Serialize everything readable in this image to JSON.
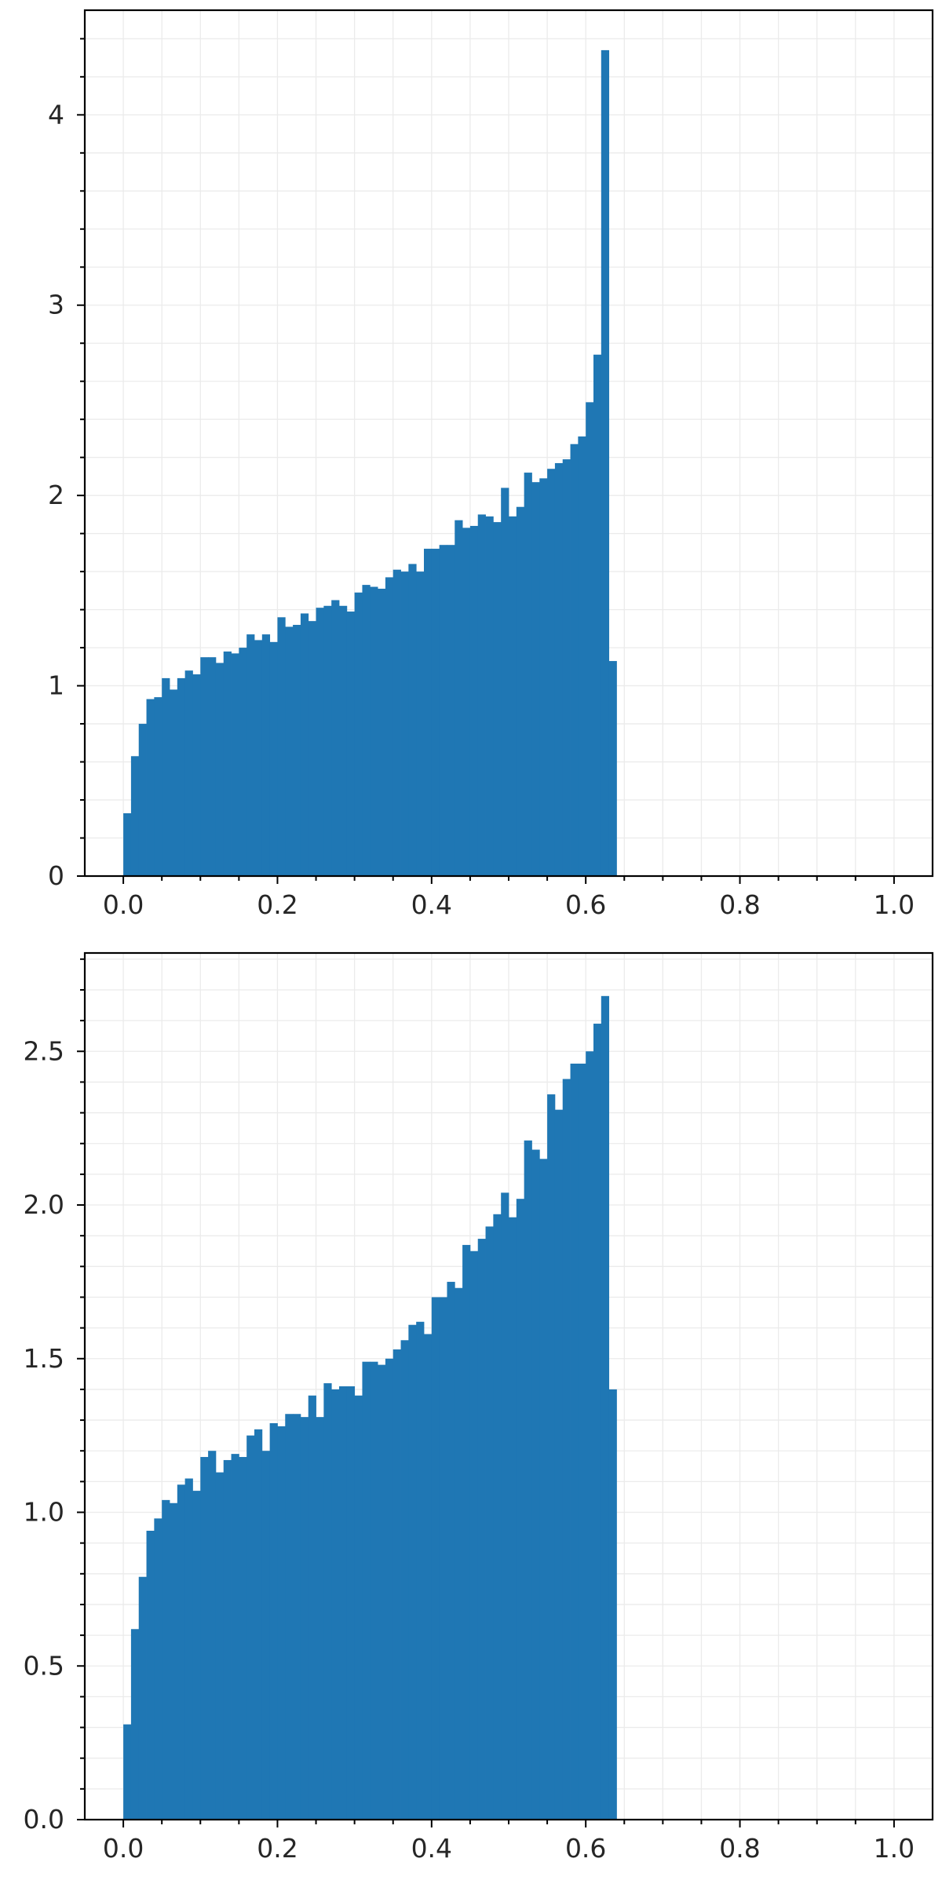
{
  "colors": {
    "bar": "#1f77b4",
    "grid": "#ebebeb",
    "axis": "#000000",
    "text": "#262626",
    "background": "#ffffff"
  },
  "chart_data": [
    {
      "type": "bar",
      "title": "",
      "xlabel": "",
      "ylabel": "",
      "grid": true,
      "bin_width": 0.01,
      "xlim": [
        -0.05,
        1.05
      ],
      "ylim": [
        0,
        4.55
      ],
      "x_ticks": [
        0.0,
        0.2,
        0.4,
        0.6,
        0.8,
        1.0
      ],
      "x_tick_labels": [
        "0.0",
        "0.2",
        "0.4",
        "0.6",
        "0.8",
        "1.0"
      ],
      "y_ticks": [
        0,
        1,
        2,
        3,
        4
      ],
      "y_tick_labels": [
        "0",
        "1",
        "2",
        "3",
        "4"
      ],
      "bin_starts": [
        0.0,
        0.01,
        0.02,
        0.03,
        0.04,
        0.05,
        0.06,
        0.07,
        0.08,
        0.09,
        0.1,
        0.11,
        0.12,
        0.13,
        0.14,
        0.15,
        0.16,
        0.17,
        0.18,
        0.19,
        0.2,
        0.21,
        0.22,
        0.23,
        0.24,
        0.25,
        0.26,
        0.27,
        0.28,
        0.29,
        0.3,
        0.31,
        0.32,
        0.33,
        0.34,
        0.35,
        0.36,
        0.37,
        0.38,
        0.39,
        0.4,
        0.41,
        0.42,
        0.43,
        0.44,
        0.45,
        0.46,
        0.47,
        0.48,
        0.49,
        0.5,
        0.51,
        0.52,
        0.53,
        0.54,
        0.55,
        0.56,
        0.57,
        0.58,
        0.59,
        0.6,
        0.61,
        0.62,
        0.63
      ],
      "values": [
        0.33,
        0.63,
        0.8,
        0.93,
        0.94,
        1.04,
        0.98,
        1.04,
        1.08,
        1.06,
        1.15,
        1.15,
        1.12,
        1.18,
        1.17,
        1.2,
        1.27,
        1.24,
        1.27,
        1.23,
        1.36,
        1.31,
        1.32,
        1.38,
        1.34,
        1.41,
        1.42,
        1.45,
        1.42,
        1.39,
        1.49,
        1.53,
        1.52,
        1.51,
        1.57,
        1.61,
        1.6,
        1.64,
        1.6,
        1.72,
        1.72,
        1.74,
        1.74,
        1.87,
        1.83,
        1.84,
        1.9,
        1.89,
        1.86,
        2.04,
        1.89,
        1.94,
        2.12,
        2.07,
        2.09,
        2.14,
        2.17,
        2.19,
        2.27,
        2.31,
        2.49,
        2.74,
        4.34,
        1.13
      ]
    },
    {
      "type": "bar",
      "title": "",
      "xlabel": "",
      "ylabel": "",
      "grid": true,
      "bin_width": 0.01,
      "xlim": [
        -0.05,
        1.05
      ],
      "ylim": [
        0,
        2.82
      ],
      "x_ticks": [
        0.0,
        0.2,
        0.4,
        0.6,
        0.8,
        1.0
      ],
      "x_tick_labels": [
        "0.0",
        "0.2",
        "0.4",
        "0.6",
        "0.8",
        "1.0"
      ],
      "y_ticks": [
        0.0,
        0.5,
        1.0,
        1.5,
        2.0,
        2.5
      ],
      "y_tick_labels": [
        "0.0",
        "0.5",
        "1.0",
        "1.5",
        "2.0",
        "2.5"
      ],
      "bin_starts": [
        0.0,
        0.01,
        0.02,
        0.03,
        0.04,
        0.05,
        0.06,
        0.07,
        0.08,
        0.09,
        0.1,
        0.11,
        0.12,
        0.13,
        0.14,
        0.15,
        0.16,
        0.17,
        0.18,
        0.19,
        0.2,
        0.21,
        0.22,
        0.23,
        0.24,
        0.25,
        0.26,
        0.27,
        0.28,
        0.29,
        0.3,
        0.31,
        0.32,
        0.33,
        0.34,
        0.35,
        0.36,
        0.37,
        0.38,
        0.39,
        0.4,
        0.41,
        0.42,
        0.43,
        0.44,
        0.45,
        0.46,
        0.47,
        0.48,
        0.49,
        0.5,
        0.51,
        0.52,
        0.53,
        0.54,
        0.55,
        0.56,
        0.57,
        0.58,
        0.59,
        0.6,
        0.61,
        0.62,
        0.63
      ],
      "values": [
        0.31,
        0.62,
        0.79,
        0.94,
        0.98,
        1.04,
        1.03,
        1.09,
        1.11,
        1.07,
        1.18,
        1.2,
        1.13,
        1.17,
        1.19,
        1.18,
        1.25,
        1.27,
        1.2,
        1.29,
        1.28,
        1.32,
        1.32,
        1.31,
        1.38,
        1.31,
        1.42,
        1.4,
        1.41,
        1.41,
        1.38,
        1.49,
        1.49,
        1.48,
        1.5,
        1.53,
        1.56,
        1.61,
        1.62,
        1.58,
        1.7,
        1.7,
        1.75,
        1.73,
        1.87,
        1.85,
        1.89,
        1.93,
        1.97,
        2.04,
        1.96,
        2.02,
        2.21,
        2.18,
        2.15,
        2.36,
        2.31,
        2.41,
        2.46,
        2.46,
        2.5,
        2.59,
        2.68,
        1.4
      ]
    }
  ]
}
